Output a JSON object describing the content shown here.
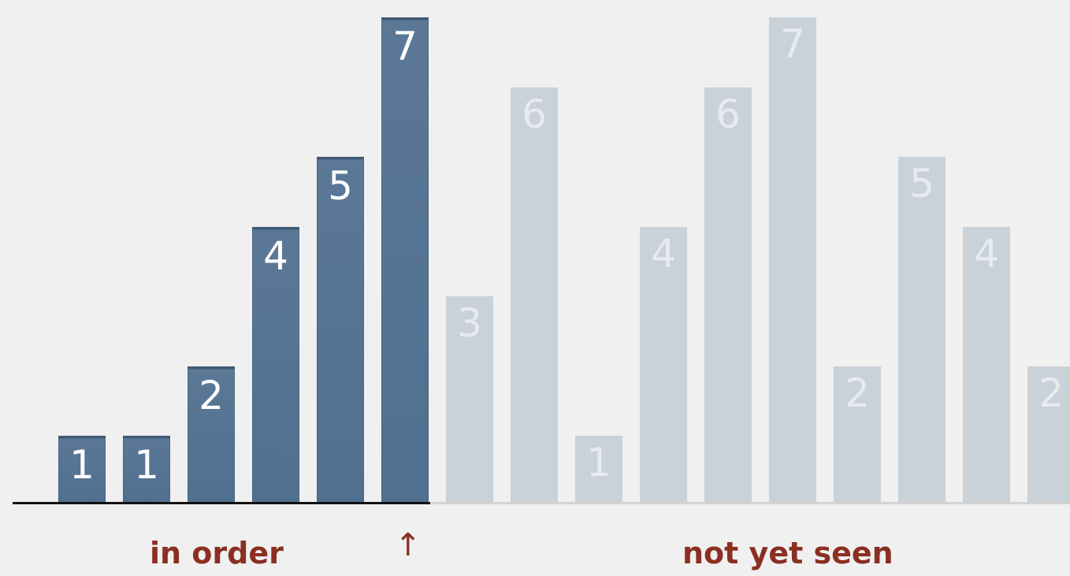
{
  "diagram": {
    "max_value": 7,
    "sorted_count": 6,
    "bars": [
      {
        "value": 1,
        "label": "1",
        "state": "in-order"
      },
      {
        "value": 1,
        "label": "1",
        "state": "in-order"
      },
      {
        "value": 2,
        "label": "2",
        "state": "in-order"
      },
      {
        "value": 4,
        "label": "4",
        "state": "in-order"
      },
      {
        "value": 5,
        "label": "5",
        "state": "in-order"
      },
      {
        "value": 7,
        "label": "7",
        "state": "in-order"
      },
      {
        "value": 3,
        "label": "3",
        "state": "not-yet-seen"
      },
      {
        "value": 6,
        "label": "6",
        "state": "not-yet-seen"
      },
      {
        "value": 1,
        "label": "1",
        "state": "not-yet-seen"
      },
      {
        "value": 4,
        "label": "4",
        "state": "not-yet-seen"
      },
      {
        "value": 6,
        "label": "6",
        "state": "not-yet-seen"
      },
      {
        "value": 7,
        "label": "7",
        "state": "not-yet-seen"
      },
      {
        "value": 2,
        "label": "2",
        "state": "not-yet-seen"
      },
      {
        "value": 5,
        "label": "5",
        "state": "not-yet-seen"
      },
      {
        "value": 4,
        "label": "4",
        "state": "not-yet-seen"
      },
      {
        "value": 2,
        "label": "2",
        "state": "not-yet-seen"
      }
    ]
  },
  "captions": {
    "in_order": "in order",
    "pointer": "↑",
    "not_yet_seen": "not yet seen"
  },
  "colors": {
    "sorted_bar": "#50708f",
    "unseen_bar": "#c9d1d9",
    "caption": "#8b2f22",
    "background": "#f0f0f0"
  }
}
